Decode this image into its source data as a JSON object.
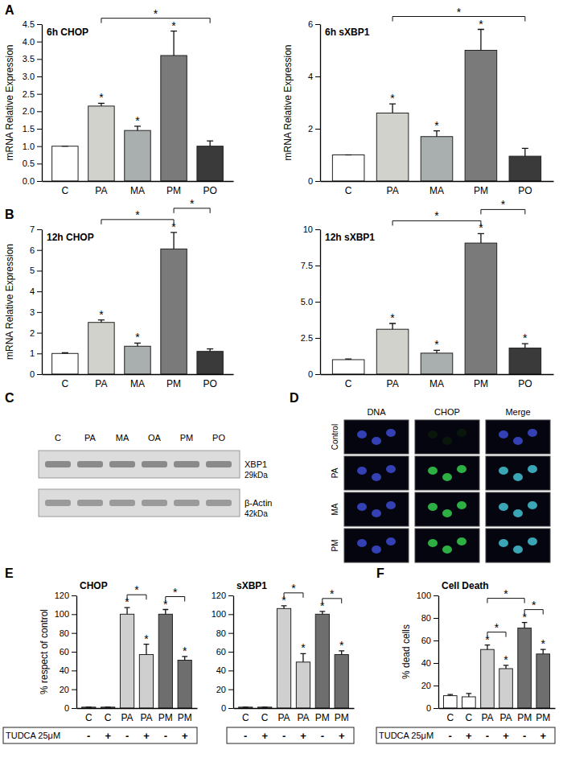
{
  "panel_labels": [
    "A",
    "B",
    "C",
    "D",
    "E",
    "F"
  ],
  "chart_data": [
    {
      "type": "bar",
      "title": "6h CHOP",
      "y_label": "mRNA Relative Expression",
      "categories": [
        "C",
        "PA",
        "MA",
        "PM",
        "PO"
      ],
      "values": [
        1.0,
        2.15,
        1.45,
        3.6,
        1.0
      ],
      "errors": [
        0,
        0.08,
        0.12,
        0.7,
        0.15
      ],
      "colors": [
        "#ffffff",
        "#d2d2cc",
        "#a9afaf",
        "#7a7a7a",
        "#3a3a3a"
      ],
      "stars": [
        null,
        "*",
        "*",
        "*",
        null
      ],
      "brackets": [
        {
          "from": 1,
          "to": 4,
          "label": "*"
        }
      ],
      "ylim": [
        0,
        4.5
      ],
      "yticks": [
        {
          "value": 0,
          "label": "0.0"
        },
        {
          "value": 0.5,
          "label": "0.5"
        },
        {
          "value": 1,
          "label": "1.0"
        },
        {
          "value": 1.5,
          "label": "1.5"
        },
        {
          "value": 2,
          "label": "2.0"
        },
        {
          "value": 2.5,
          "label": "2.5"
        },
        {
          "value": 3,
          "label": "3.0"
        },
        {
          "value": 3.5,
          "label": "3.5"
        },
        {
          "value": 4,
          "label": "4.0"
        },
        {
          "value": 4.5,
          "label": "4.5"
        }
      ]
    },
    {
      "type": "bar",
      "title": "6h sXBP1",
      "y_label": "mRNA Relative Expression",
      "categories": [
        "C",
        "PA",
        "MA",
        "PM",
        "PO"
      ],
      "values": [
        1.0,
        2.6,
        1.7,
        5.0,
        0.95
      ],
      "errors": [
        0,
        0.35,
        0.22,
        0.8,
        0.3
      ],
      "colors": [
        "#ffffff",
        "#d2d2cc",
        "#a9afaf",
        "#7a7a7a",
        "#3a3a3a"
      ],
      "stars": [
        null,
        "*",
        "*",
        "*",
        null
      ],
      "brackets": [
        {
          "from": 1,
          "to": 4,
          "label": "*"
        }
      ],
      "ylim": [
        0,
        6
      ],
      "yticks": [
        0,
        2,
        4,
        6
      ]
    },
    {
      "type": "bar",
      "title": "12h CHOP",
      "y_label": "mRNA Relative Expression",
      "categories": [
        "C",
        "PA",
        "MA",
        "PM",
        "PO"
      ],
      "values": [
        1.0,
        2.5,
        1.35,
        6.05,
        1.1
      ],
      "errors": [
        0.03,
        0.12,
        0.15,
        0.8,
        0.12
      ],
      "colors": [
        "#ffffff",
        "#d2d2cc",
        "#a9afaf",
        "#7a7a7a",
        "#3a3a3a"
      ],
      "stars": [
        null,
        "*",
        "*",
        "*",
        null
      ],
      "brackets": [
        {
          "from": 1,
          "to": 3,
          "label": "*"
        },
        {
          "from": 3,
          "to": 4,
          "label": "*"
        }
      ],
      "ylim": [
        0,
        7
      ],
      "yticks": [
        0,
        1,
        2,
        3,
        4,
        5,
        6,
        7
      ]
    },
    {
      "type": "bar",
      "title": "12h sXBP1",
      "categories": [
        "C",
        "PA",
        "MA",
        "PM",
        "PO"
      ],
      "values": [
        1.0,
        3.1,
        1.45,
        9.05,
        1.8
      ],
      "errors": [
        0.05,
        0.4,
        0.2,
        0.65,
        0.3
      ],
      "colors": [
        "#ffffff",
        "#d2d2cc",
        "#a9afaf",
        "#7a7a7a",
        "#3a3a3a"
      ],
      "stars": [
        null,
        "*",
        "*",
        "*",
        "*"
      ],
      "brackets": [
        {
          "from": 1,
          "to": 3,
          "label": "*"
        },
        {
          "from": 3,
          "to": 4,
          "label": "*"
        }
      ],
      "ylim": [
        0,
        10
      ],
      "yticks": [
        0,
        2.5,
        {
          "value": 5,
          "label": "5.0"
        },
        7.5,
        10
      ]
    },
    {
      "type": "bar",
      "title": "CHOP",
      "y_label": "% respect of control",
      "categories": [
        "C",
        "C",
        "PA",
        "PA",
        "PM",
        "PM"
      ],
      "values": [
        1,
        1,
        100,
        57,
        100,
        51
      ],
      "errors": [
        0,
        0,
        7,
        11,
        5,
        4
      ],
      "colors": [
        "#ffffff",
        "#ffffff",
        "#cfcfcf",
        "#cfcfcf",
        "#6e6e6e",
        "#6e6e6e"
      ],
      "stars": [
        null,
        null,
        "*",
        "*",
        "*",
        "*"
      ],
      "brackets": [
        {
          "from": 2,
          "to": 3,
          "label": "*"
        },
        {
          "from": 4,
          "to": 5,
          "label": "*"
        }
      ],
      "treatment": {
        "label": "TUDCA 25μM",
        "values": [
          "-",
          "+",
          "-",
          "+",
          "-",
          "+"
        ]
      },
      "ylim": [
        0,
        120
      ],
      "yticks": [
        0,
        20,
        40,
        60,
        80,
        100,
        120
      ]
    },
    {
      "type": "bar",
      "title": "sXBP1",
      "categories": [
        "C",
        "C",
        "PA",
        "PA",
        "PM",
        "PM"
      ],
      "values": [
        1,
        1,
        106,
        49,
        100,
        57
      ],
      "errors": [
        0,
        0,
        3,
        9,
        3,
        4
      ],
      "colors": [
        "#ffffff",
        "#ffffff",
        "#cfcfcf",
        "#cfcfcf",
        "#6e6e6e",
        "#6e6e6e"
      ],
      "stars": [
        null,
        null,
        "*",
        "*",
        "*",
        "*"
      ],
      "brackets": [
        {
          "from": 2,
          "to": 3,
          "label": "*"
        },
        {
          "from": 4,
          "to": 5,
          "label": "*"
        }
      ],
      "treatment": {
        "values": [
          "-",
          "+",
          "-",
          "+",
          "-",
          "+"
        ]
      },
      "ylim": [
        0,
        120
      ],
      "yticks": [
        0,
        20,
        40,
        60,
        80,
        100,
        120
      ]
    },
    {
      "type": "bar",
      "title": "Cell Death",
      "y_label": "% dead cells",
      "categories": [
        "C",
        "C",
        "PA",
        "PA",
        "PM",
        "PM"
      ],
      "values": [
        11,
        10,
        52,
        35,
        71,
        48
      ],
      "errors": [
        1,
        3,
        4,
        3,
        5,
        4
      ],
      "colors": [
        "#ffffff",
        "#ffffff",
        "#cfcfcf",
        "#cfcfcf",
        "#6e6e6e",
        "#6e6e6e"
      ],
      "stars": [
        null,
        null,
        "*",
        "*",
        "*",
        "*"
      ],
      "brackets": [
        {
          "from": 2,
          "to": 3,
          "label": "*"
        },
        {
          "from": 4,
          "to": 5,
          "label": "*"
        },
        {
          "from": 2,
          "to": 4,
          "label": "*"
        }
      ],
      "treatment": {
        "label": "TUDCA 25μM",
        "values": [
          "-",
          "+",
          "-",
          "+",
          "-",
          "+"
        ]
      },
      "ylim": [
        0,
        100
      ],
      "yticks": [
        0,
        20,
        40,
        60,
        80,
        100
      ]
    }
  ],
  "blot": {
    "lanes": [
      "C",
      "PA",
      "MA",
      "OA",
      "PM",
      "PO"
    ],
    "bands": [
      {
        "label": "XBP1",
        "size": "29kDa"
      },
      {
        "label": "β-Actin",
        "size": "42kDa"
      }
    ]
  },
  "micrograph": {
    "columns": [
      "DNA",
      "CHOP",
      "Merge"
    ],
    "rows": [
      "Control",
      "PA",
      "MA",
      "PM"
    ]
  }
}
